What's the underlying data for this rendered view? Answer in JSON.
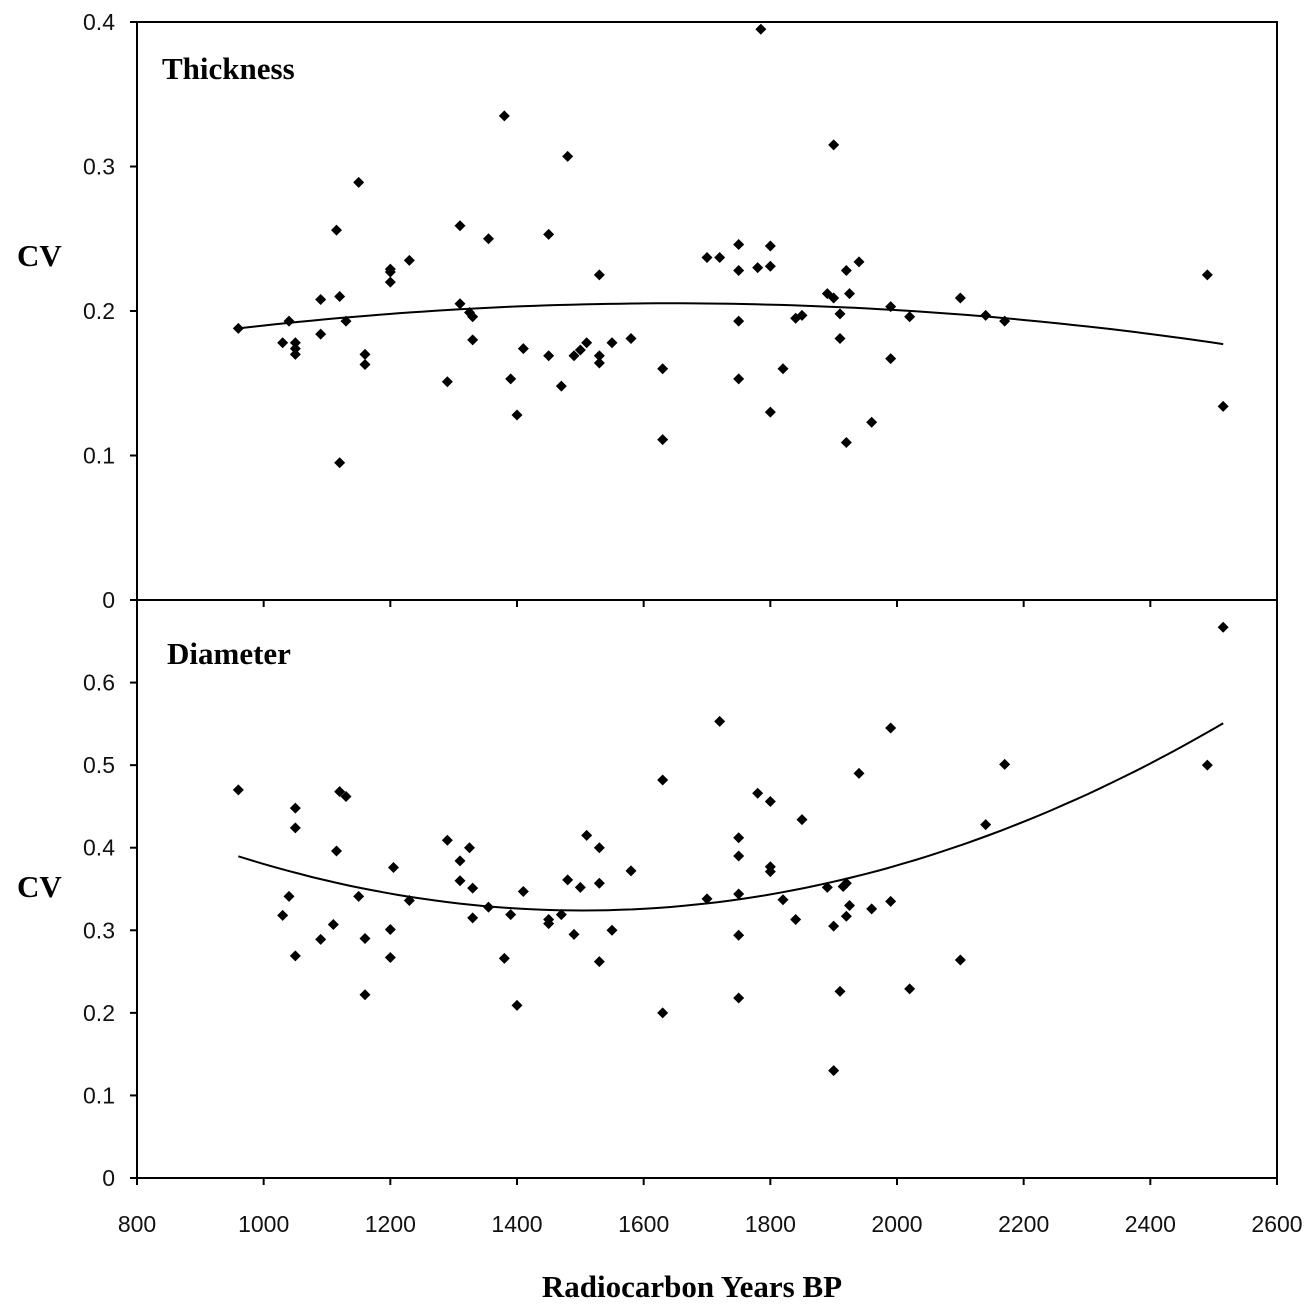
{
  "chart_data": [
    {
      "type": "scatter",
      "title": "Thickness",
      "xlabel": "Radiocarbon Years BP",
      "ylabel": "CV",
      "xlim": [
        800,
        2600
      ],
      "ylim": [
        0,
        0.4
      ],
      "y_ticks": [
        "0",
        "0.1",
        "0.2",
        "0.3",
        "0.4"
      ],
      "grid": false,
      "trendline": {
        "type": "polynomial",
        "order": 2,
        "x_range": [
          960,
          2515
        ],
        "values": [
          [
            960,
            0.188
          ],
          [
            1200,
            0.198
          ],
          [
            1600,
            0.205
          ],
          [
            1900,
            0.203
          ],
          [
            2200,
            0.194
          ],
          [
            2515,
            0.177
          ]
        ]
      },
      "points": [
        [
          960,
          0.188
        ],
        [
          1030,
          0.178
        ],
        [
          1040,
          0.193
        ],
        [
          1050,
          0.178
        ],
        [
          1050,
          0.174
        ],
        [
          1050,
          0.17
        ],
        [
          1090,
          0.208
        ],
        [
          1090,
          0.184
        ],
        [
          1115,
          0.256
        ],
        [
          1120,
          0.21
        ],
        [
          1120,
          0.095
        ],
        [
          1130,
          0.193
        ],
        [
          1150,
          0.289
        ],
        [
          1160,
          0.17
        ],
        [
          1160,
          0.163
        ],
        [
          1200,
          0.229
        ],
        [
          1200,
          0.227
        ],
        [
          1200,
          0.22
        ],
        [
          1230,
          0.235
        ],
        [
          1290,
          0.151
        ],
        [
          1310,
          0.259
        ],
        [
          1310,
          0.205
        ],
        [
          1325,
          0.199
        ],
        [
          1330,
          0.196
        ],
        [
          1330,
          0.18
        ],
        [
          1355,
          0.25
        ],
        [
          1380,
          0.335
        ],
        [
          1390,
          0.153
        ],
        [
          1400,
          0.128
        ],
        [
          1410,
          0.174
        ],
        [
          1450,
          0.253
        ],
        [
          1450,
          0.169
        ],
        [
          1470,
          0.148
        ],
        [
          1480,
          0.307
        ],
        [
          1490,
          0.169
        ],
        [
          1500,
          0.173
        ],
        [
          1510,
          0.178
        ],
        [
          1530,
          0.225
        ],
        [
          1530,
          0.169
        ],
        [
          1530,
          0.164
        ],
        [
          1550,
          0.178
        ],
        [
          1580,
          0.181
        ],
        [
          1630,
          0.16
        ],
        [
          1630,
          0.111
        ],
        [
          1700,
          0.237
        ],
        [
          1720,
          0.237
        ],
        [
          1750,
          0.246
        ],
        [
          1750,
          0.228
        ],
        [
          1750,
          0.193
        ],
        [
          1750,
          0.153
        ],
        [
          1780,
          0.23
        ],
        [
          1785,
          0.395
        ],
        [
          1800,
          0.245
        ],
        [
          1800,
          0.231
        ],
        [
          1800,
          0.13
        ],
        [
          1820,
          0.16
        ],
        [
          1840,
          0.195
        ],
        [
          1850,
          0.197
        ],
        [
          1890,
          0.212
        ],
        [
          1900,
          0.315
        ],
        [
          1900,
          0.209
        ],
        [
          1910,
          0.198
        ],
        [
          1910,
          0.181
        ],
        [
          1920,
          0.228
        ],
        [
          1920,
          0.109
        ],
        [
          1925,
          0.212
        ],
        [
          1940,
          0.234
        ],
        [
          1960,
          0.123
        ],
        [
          1990,
          0.203
        ],
        [
          1990,
          0.167
        ],
        [
          2020,
          0.196
        ],
        [
          2100,
          0.209
        ],
        [
          2140,
          0.197
        ],
        [
          2170,
          0.193
        ],
        [
          2490,
          0.225
        ],
        [
          2515,
          0.134
        ]
      ]
    },
    {
      "type": "scatter",
      "title": "Diameter",
      "xlabel": "Radiocarbon Years BP",
      "ylabel": "CV",
      "xlim": [
        800,
        2600
      ],
      "ylim": [
        0,
        0.7
      ],
      "x_ticks": [
        "800",
        "1000",
        "1200",
        "1400",
        "1600",
        "1800",
        "2000",
        "2200",
        "2400",
        "2600"
      ],
      "y_ticks": [
        "0",
        "0.1",
        "0.2",
        "0.3",
        "0.4",
        "0.5",
        "0.6"
      ],
      "grid": false,
      "trendline": {
        "type": "polynomial",
        "order": 2,
        "x_range": [
          960,
          2515
        ],
        "values": [
          [
            960,
            0.388
          ],
          [
            1200,
            0.345
          ],
          [
            1500,
            0.327
          ],
          [
            1800,
            0.345
          ],
          [
            2100,
            0.397
          ],
          [
            2515,
            0.553
          ]
        ]
      },
      "points": [
        [
          960,
          0.47
        ],
        [
          1030,
          0.318
        ],
        [
          1040,
          0.341
        ],
        [
          1050,
          0.448
        ],
        [
          1050,
          0.424
        ],
        [
          1050,
          0.269
        ],
        [
          1090,
          0.289
        ],
        [
          1110,
          0.307
        ],
        [
          1115,
          0.396
        ],
        [
          1120,
          0.468
        ],
        [
          1130,
          0.462
        ],
        [
          1150,
          0.341
        ],
        [
          1160,
          0.29
        ],
        [
          1160,
          0.222
        ],
        [
          1200,
          0.301
        ],
        [
          1200,
          0.267
        ],
        [
          1205,
          0.376
        ],
        [
          1230,
          0.336
        ],
        [
          1290,
          0.409
        ],
        [
          1310,
          0.384
        ],
        [
          1310,
          0.36
        ],
        [
          1325,
          0.4
        ],
        [
          1330,
          0.351
        ],
        [
          1330,
          0.315
        ],
        [
          1355,
          0.328
        ],
        [
          1380,
          0.266
        ],
        [
          1390,
          0.319
        ],
        [
          1400,
          0.209
        ],
        [
          1410,
          0.347
        ],
        [
          1450,
          0.313
        ],
        [
          1450,
          0.308
        ],
        [
          1470,
          0.319
        ],
        [
          1480,
          0.361
        ],
        [
          1490,
          0.295
        ],
        [
          1500,
          0.352
        ],
        [
          1510,
          0.415
        ],
        [
          1530,
          0.4
        ],
        [
          1530,
          0.357
        ],
        [
          1530,
          0.262
        ],
        [
          1550,
          0.3
        ],
        [
          1580,
          0.372
        ],
        [
          1630,
          0.482
        ],
        [
          1630,
          0.2
        ],
        [
          1700,
          0.338
        ],
        [
          1720,
          0.553
        ],
        [
          1750,
          0.412
        ],
        [
          1750,
          0.39
        ],
        [
          1750,
          0.344
        ],
        [
          1750,
          0.294
        ],
        [
          1750,
          0.218
        ],
        [
          1780,
          0.466
        ],
        [
          1800,
          0.456
        ],
        [
          1800,
          0.377
        ],
        [
          1800,
          0.371
        ],
        [
          1820,
          0.337
        ],
        [
          1840,
          0.313
        ],
        [
          1850,
          0.434
        ],
        [
          1890,
          0.352
        ],
        [
          1900,
          0.305
        ],
        [
          1900,
          0.13
        ],
        [
          1910,
          0.226
        ],
        [
          1915,
          0.353
        ],
        [
          1920,
          0.357
        ],
        [
          1920,
          0.317
        ],
        [
          1925,
          0.33
        ],
        [
          1940,
          0.49
        ],
        [
          1960,
          0.326
        ],
        [
          1990,
          0.545
        ],
        [
          1990,
          0.335
        ],
        [
          2020,
          0.229
        ],
        [
          2100,
          0.264
        ],
        [
          2140,
          0.428
        ],
        [
          2170,
          0.501
        ],
        [
          2490,
          0.5
        ],
        [
          2515,
          0.667
        ]
      ]
    }
  ]
}
